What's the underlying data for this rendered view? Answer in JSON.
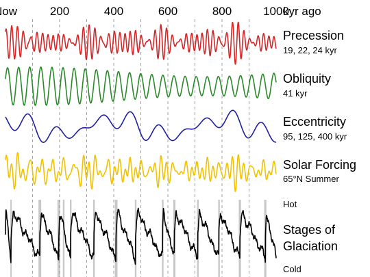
{
  "chart_data": {
    "type": "line",
    "xaxis": {
      "ticks": [
        0,
        200,
        400,
        600,
        800,
        1000
      ],
      "tick_labels": [
        "Now",
        "200",
        "400",
        "600",
        "800",
        "1000"
      ],
      "unit_label": "kyr ago",
      "range": [
        0,
        1000
      ],
      "gridlines_every": 100
    },
    "series": [
      {
        "name": "Precession",
        "detail": "19, 22, 24 kyr",
        "color": "#d62728",
        "periods_kyr": [
          19,
          22,
          24
        ],
        "shape": "oscillation"
      },
      {
        "name": "Obliquity",
        "detail": "41 kyr",
        "color": "#2a8a2a",
        "periods_kyr": [
          41
        ],
        "shape": "oscillation"
      },
      {
        "name": "Eccentricity",
        "detail": "95, 125, 400 kyr",
        "color": "#1f1fa0",
        "periods_kyr": [
          95,
          125,
          400
        ],
        "shape": "oscillation"
      },
      {
        "name": "Solar Forcing",
        "detail": "65°N Summer",
        "color": "#f2c200",
        "shape": "oscillation"
      },
      {
        "name": "Stages of Glaciation",
        "detail": "",
        "color": "#000000",
        "shape": "sawtooth",
        "scale_top": "Hot",
        "scale_bottom": "Cold",
        "interglacial_bands_kyr": [
          [
            18,
            22
          ],
          [
            122,
            132
          ],
          [
            192,
            202
          ],
          [
            212,
            218
          ],
          [
            238,
            244
          ],
          [
            324,
            330
          ],
          [
            404,
            414
          ],
          [
            478,
            484
          ],
          [
            578,
            584
          ],
          [
            620,
            628
          ],
          [
            708,
            714
          ],
          [
            786,
            792
          ],
          [
            862,
            870
          ],
          [
            956,
            964
          ]
        ],
        "band_color": "#c8c8c8"
      }
    ],
    "grid": true
  }
}
